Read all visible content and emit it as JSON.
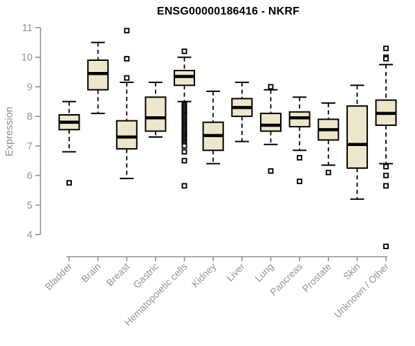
{
  "chart_data": {
    "type": "boxplot",
    "title": "ENSG00000186416 - NKRF",
    "ylabel": "Expression",
    "xlabel": "",
    "ylim": [
      4,
      11
    ],
    "yticks": [
      4,
      5,
      6,
      7,
      8,
      9,
      10,
      11
    ],
    "grid": false,
    "legend": false,
    "categories": [
      "Bladder",
      "Brain",
      "Breast",
      "Gastric",
      "Hematopoietic cells",
      "Kidney",
      "Liver",
      "Lung",
      "Pancreas",
      "Prostate",
      "Skin",
      "Unknown / Other"
    ],
    "boxes": [
      {
        "category": "Bladder",
        "whisker_low": 6.8,
        "q1": 7.55,
        "median": 7.8,
        "q3": 8.05,
        "whisker_high": 8.5,
        "outliers": [
          5.75
        ]
      },
      {
        "category": "Brain",
        "whisker_low": 8.1,
        "q1": 8.9,
        "median": 9.45,
        "q3": 9.9,
        "whisker_high": 10.5,
        "outliers": []
      },
      {
        "category": "Breast",
        "whisker_low": 5.9,
        "q1": 6.9,
        "median": 7.3,
        "q3": 7.85,
        "whisker_high": 9.15,
        "outliers": [
          10.9,
          9.95,
          9.3
        ]
      },
      {
        "category": "Gastric",
        "whisker_low": 7.3,
        "q1": 7.5,
        "median": 7.95,
        "q3": 8.65,
        "whisker_high": 9.15,
        "outliers": []
      },
      {
        "category": "Hematopoietic cells",
        "whisker_low": 8.5,
        "q1": 9.05,
        "median": 9.35,
        "q3": 9.55,
        "whisker_high": 10.0,
        "outliers": [
          10.2,
          8.4,
          8.35,
          8.3,
          8.25,
          8.2,
          8.15,
          8.1,
          8.05,
          8.0,
          7.95,
          7.9,
          7.85,
          7.8,
          7.75,
          7.7,
          7.65,
          7.6,
          7.55,
          7.5,
          7.45,
          7.4,
          7.35,
          7.3,
          7.25,
          7.2,
          7.15,
          7.1,
          7.05,
          7.0,
          6.8,
          6.5,
          5.65
        ]
      },
      {
        "category": "Kidney",
        "whisker_low": 6.4,
        "q1": 6.85,
        "median": 7.35,
        "q3": 7.8,
        "whisker_high": 8.85,
        "outliers": []
      },
      {
        "category": "Liver",
        "whisker_low": 7.15,
        "q1": 8.0,
        "median": 8.3,
        "q3": 8.6,
        "whisker_high": 9.15,
        "outliers": []
      },
      {
        "category": "Lung",
        "whisker_low": 7.05,
        "q1": 7.5,
        "median": 7.7,
        "q3": 8.1,
        "whisker_high": 8.9,
        "outliers": [
          9.0,
          6.15
        ]
      },
      {
        "category": "Pancreas",
        "whisker_low": 6.85,
        "q1": 7.65,
        "median": 7.95,
        "q3": 8.15,
        "whisker_high": 8.65,
        "outliers": [
          6.6,
          5.8
        ]
      },
      {
        "category": "Prostate",
        "whisker_low": 6.35,
        "q1": 7.2,
        "median": 7.55,
        "q3": 7.9,
        "whisker_high": 8.45,
        "outliers": [
          6.1
        ]
      },
      {
        "category": "Skin",
        "whisker_low": 5.2,
        "q1": 6.25,
        "median": 7.05,
        "q3": 8.35,
        "whisker_high": 9.05,
        "outliers": []
      },
      {
        "category": "Unknown / Other",
        "whisker_low": 6.4,
        "q1": 7.7,
        "median": 8.1,
        "q3": 8.55,
        "whisker_high": 9.75,
        "outliers": [
          10.3,
          10.0,
          9.95,
          6.3,
          6.0,
          5.65,
          3.6
        ]
      }
    ],
    "colors": {
      "box_fill": "#ece6cd",
      "box_border": "#000000",
      "median": "#000000",
      "axis": "#8f8f8f",
      "tick_text": "#949494",
      "title_text": "#000000",
      "outlier_fill": "#ffffff"
    }
  }
}
